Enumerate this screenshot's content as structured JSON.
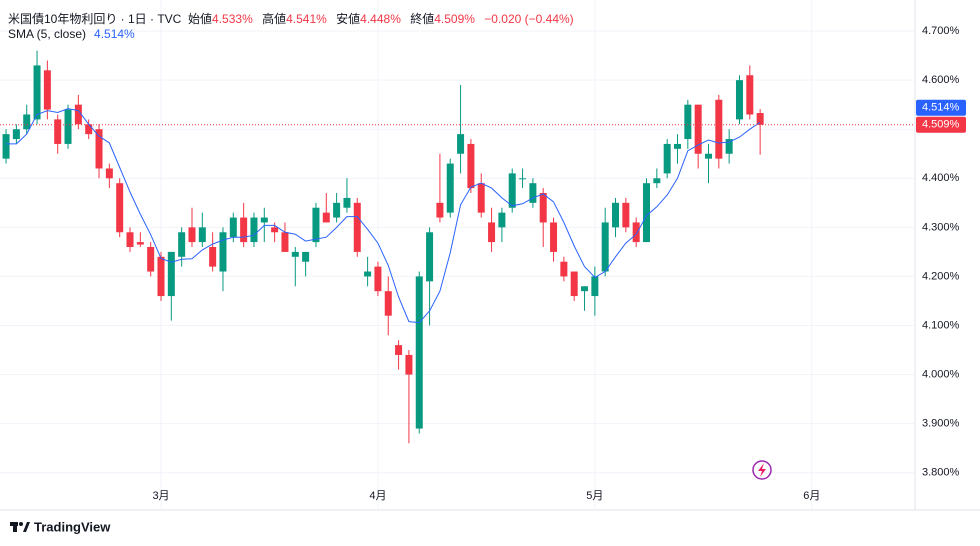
{
  "header": {
    "title": "米国債10年物利回り · 1日 · TVC",
    "open_label": "始値",
    "open": "4.533%",
    "high_label": "高値",
    "high": "4.541%",
    "low_label": "安値",
    "low": "4.448%",
    "close_label": "終値",
    "close": "4.509%",
    "change": "−0.020 (−0.44%)"
  },
  "chart_data": {
    "type": "candlestick",
    "categories": [
      null,
      null,
      null,
      null,
      null,
      null,
      null,
      null,
      null,
      null,
      null,
      null,
      null,
      null,
      null,
      "3月",
      null,
      null,
      null,
      null,
      null,
      null,
      null,
      null,
      null,
      null,
      null,
      null,
      null,
      null,
      null,
      null,
      null,
      null,
      null,
      null,
      "4月",
      null,
      null,
      null,
      null,
      null,
      null,
      null,
      null,
      null,
      null,
      null,
      null,
      null,
      null,
      null,
      null,
      null,
      null,
      null,
      null,
      "5月",
      null,
      null,
      null,
      null,
      null,
      null,
      null,
      null,
      null,
      null,
      null,
      null,
      null,
      null,
      null,
      null,
      null,
      null,
      null,
      null,
      "6月"
    ],
    "open": [
      4.44,
      4.48,
      4.5,
      4.52,
      4.62,
      4.52,
      4.47,
      4.55,
      4.51,
      4.5,
      4.42,
      4.39,
      4.29,
      4.27,
      4.26,
      4.24,
      4.16,
      4.24,
      4.3,
      4.27,
      4.26,
      4.21,
      4.28,
      4.32,
      4.27,
      4.31,
      4.3,
      4.29,
      4.24,
      4.23,
      4.27,
      4.33,
      4.32,
      4.34,
      4.35,
      4.2,
      4.22,
      4.17,
      4.06,
      4.04,
      3.89,
      4.19,
      4.35,
      4.33,
      4.45,
      4.47,
      4.39,
      4.31,
      4.3,
      4.34,
      4.4,
      4.35,
      4.37,
      4.31,
      4.23,
      4.21,
      4.17,
      4.16,
      4.21,
      4.3,
      4.35,
      4.31,
      4.27,
      4.39,
      4.41,
      4.46,
      4.48,
      4.55,
      4.44,
      4.56,
      4.45,
      4.52,
      4.61,
      4.533,
      null,
      null,
      null,
      null,
      null
    ],
    "high": [
      4.5,
      4.51,
      4.55,
      4.66,
      4.64,
      4.53,
      4.55,
      4.57,
      4.52,
      4.51,
      4.43,
      4.4,
      4.3,
      4.29,
      4.27,
      4.25,
      4.25,
      4.3,
      4.34,
      4.33,
      4.29,
      4.3,
      4.33,
      4.35,
      4.33,
      4.34,
      4.31,
      4.31,
      4.26,
      4.25,
      4.35,
      4.37,
      4.37,
      4.4,
      4.36,
      4.24,
      4.23,
      4.2,
      4.07,
      4.05,
      4.21,
      4.3,
      4.45,
      4.44,
      4.59,
      4.48,
      4.41,
      4.34,
      4.34,
      4.42,
      4.42,
      4.4,
      4.38,
      4.32,
      4.24,
      4.21,
      4.18,
      4.22,
      4.34,
      4.36,
      4.36,
      4.32,
      4.4,
      4.42,
      4.48,
      4.49,
      4.56,
      4.55,
      4.47,
      4.57,
      4.5,
      4.61,
      4.63,
      4.541,
      null,
      null,
      null,
      null,
      null
    ],
    "low": [
      4.43,
      4.47,
      4.49,
      4.51,
      4.52,
      4.45,
      4.46,
      4.5,
      4.48,
      4.4,
      4.38,
      4.28,
      4.25,
      4.26,
      4.2,
      4.15,
      4.11,
      4.22,
      4.26,
      4.26,
      4.21,
      4.17,
      4.27,
      4.26,
      4.26,
      4.27,
      4.27,
      4.25,
      4.18,
      4.2,
      4.26,
      4.31,
      4.31,
      4.33,
      4.24,
      4.18,
      4.16,
      4.08,
      4.01,
      3.86,
      3.88,
      4.1,
      4.31,
      4.32,
      4.41,
      4.37,
      4.32,
      4.25,
      4.27,
      4.33,
      4.38,
      4.34,
      4.26,
      4.23,
      4.19,
      4.15,
      4.13,
      4.12,
      4.2,
      4.28,
      4.29,
      4.26,
      4.27,
      4.38,
      4.4,
      4.43,
      4.46,
      4.42,
      4.39,
      4.42,
      4.43,
      4.51,
      4.52,
      4.448,
      null,
      null,
      null,
      null,
      null
    ],
    "close": [
      4.49,
      4.5,
      4.53,
      4.63,
      4.54,
      4.47,
      4.54,
      4.51,
      4.49,
      4.42,
      4.4,
      4.29,
      4.26,
      4.265,
      4.21,
      4.16,
      4.25,
      4.29,
      4.27,
      4.3,
      4.22,
      4.29,
      4.32,
      4.27,
      4.32,
      4.32,
      4.29,
      4.25,
      4.25,
      4.25,
      4.34,
      4.31,
      4.35,
      4.36,
      4.25,
      4.21,
      4.17,
      4.12,
      4.04,
      4.0,
      4.2,
      4.29,
      4.32,
      4.43,
      4.49,
      4.38,
      4.33,
      4.27,
      4.33,
      4.41,
      4.4,
      4.39,
      4.31,
      4.25,
      4.2,
      4.16,
      4.18,
      4.2,
      4.31,
      4.35,
      4.3,
      4.27,
      4.39,
      4.4,
      4.47,
      4.47,
      4.55,
      4.45,
      4.45,
      4.44,
      4.48,
      4.6,
      4.53,
      4.509,
      null,
      null,
      null,
      null,
      null
    ],
    "up_color": "#089981",
    "down_color": "#f23645",
    "overlay": {
      "name": "SMA (5, close)",
      "color": "#2962ff",
      "value_label": "4.514%",
      "values": [
        4.47,
        4.47,
        4.49,
        4.53,
        4.538,
        4.534,
        4.542,
        4.538,
        4.51,
        4.486,
        4.472,
        4.422,
        4.372,
        4.327,
        4.285,
        4.237,
        4.229,
        4.235,
        4.236,
        4.254,
        4.266,
        4.274,
        4.28,
        4.28,
        4.284,
        4.304,
        4.304,
        4.29,
        4.286,
        4.272,
        4.276,
        4.28,
        4.3,
        4.322,
        4.322,
        4.296,
        4.268,
        4.222,
        4.158,
        4.108,
        4.106,
        4.13,
        4.17,
        4.248,
        4.346,
        4.382,
        4.39,
        4.38,
        4.36,
        4.344,
        4.348,
        4.36,
        4.368,
        4.352,
        4.31,
        4.262,
        4.22,
        4.198,
        4.21,
        4.24,
        4.268,
        4.286,
        4.324,
        4.342,
        4.366,
        4.4,
        4.456,
        4.468,
        4.478,
        4.472,
        4.474,
        4.484,
        4.5,
        4.514,
        null,
        null,
        null,
        null,
        null
      ]
    },
    "last_value_label": "4.509%",
    "ylim": [
      3.775,
      4.747
    ],
    "yticks": [
      {
        "value": 3.8,
        "label": "3.800%"
      },
      {
        "value": 3.9,
        "label": "3.900%"
      },
      {
        "value": 4.0,
        "label": "4.000%"
      },
      {
        "value": 4.1,
        "label": "4.100%"
      },
      {
        "value": 4.2,
        "label": "4.200%"
      },
      {
        "value": 4.3,
        "label": "4.300%"
      },
      {
        "value": 4.4,
        "label": "4.400%"
      },
      {
        "value": 4.5,
        "label": "4.500%"
      },
      {
        "value": 4.6,
        "label": "4.600%"
      },
      {
        "value": 4.7,
        "label": "4.700%"
      }
    ],
    "grid": true
  },
  "footer": {
    "brand": "TradingView"
  }
}
